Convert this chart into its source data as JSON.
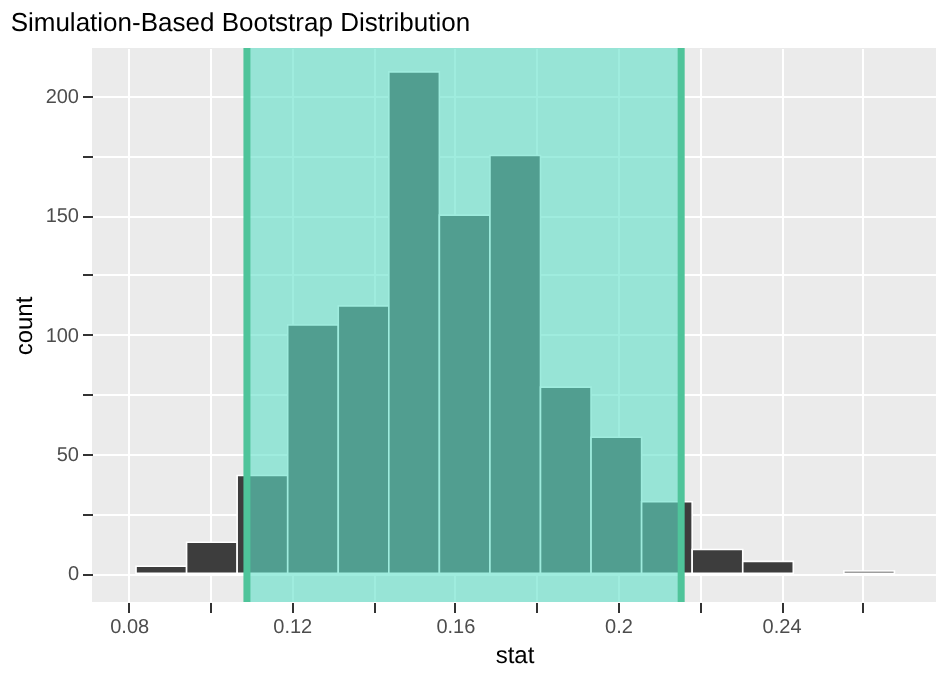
{
  "chart_data": {
    "type": "histogram",
    "title": "Simulation-Based Bootstrap Distribution",
    "xlabel": "stat",
    "ylabel": "count",
    "bins": [
      0.0818,
      0.0942,
      0.1066,
      0.119,
      0.1314,
      0.1438,
      0.1562,
      0.1686,
      0.181,
      0.1934,
      0.2058,
      0.2182,
      0.2306,
      0.243,
      0.2554,
      0.2678
    ],
    "values": [
      3,
      13,
      41,
      104,
      112,
      210,
      150,
      175,
      78,
      57,
      30,
      10,
      5,
      0,
      1
    ],
    "color": "#3d3d3d",
    "xlim": [
      0.071,
      0.278
    ],
    "ylim": [
      -12,
      220
    ],
    "xticks": [
      0.08,
      {
        "value": 0.1,
        "label": null
      },
      0.12,
      {
        "value": 0.14,
        "label": null
      },
      0.16,
      {
        "value": 0.18,
        "label": null
      },
      0.2,
      {
        "value": 0.22,
        "label": null
      },
      0.24,
      {
        "value": 0.26,
        "label": null
      }
    ],
    "yticks": [
      0,
      {
        "value": 25,
        "label": null
      },
      50,
      {
        "value": 75,
        "label": null
      },
      100,
      {
        "value": 125,
        "label": null
      },
      150,
      {
        "value": 175,
        "label": null
      },
      200
    ],
    "bands": [
      {
        "axis": "x",
        "from": 0.109,
        "to": 0.2155,
        "color": "#5fe0c8"
      }
    ],
    "ref_lines": [
      {
        "axis": "x",
        "value": 0.109,
        "color": "#4fc49a"
      },
      {
        "axis": "x",
        "value": 0.2155,
        "color": "#4fc49a"
      }
    ],
    "grid": true
  }
}
